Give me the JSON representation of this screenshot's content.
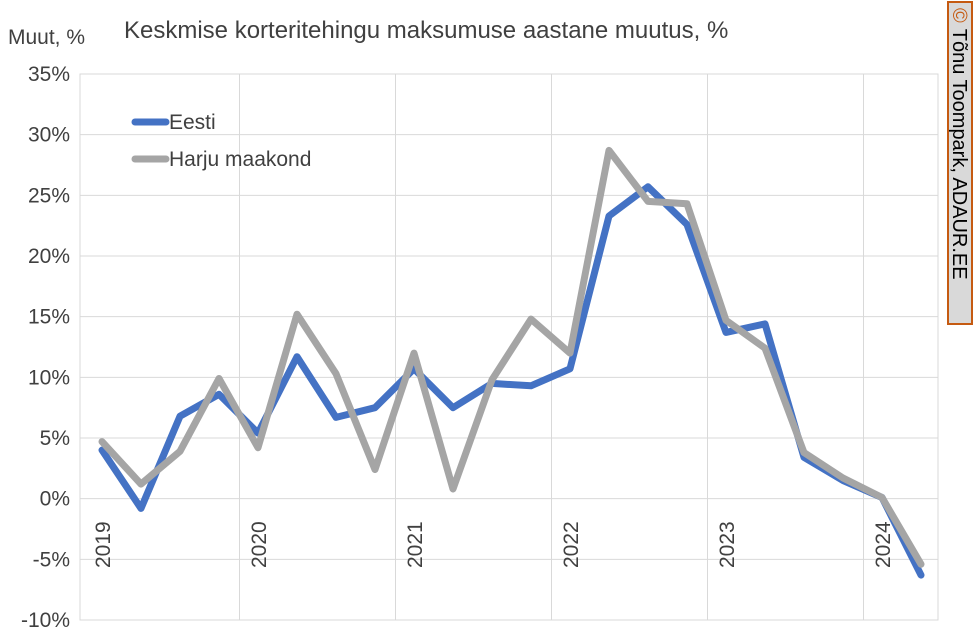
{
  "chart_data": {
    "type": "line",
    "title": "Keskmise korteritehingu maksumuse aastane muutus, %",
    "ylabel": "Muut, %",
    "ylim": [
      -10,
      35
    ],
    "ytick_step": 5,
    "yticks": [
      "35%",
      "30%",
      "25%",
      "20%",
      "15%",
      "10%",
      "5%",
      "0%",
      "-5%",
      "-10%"
    ],
    "year_labels": [
      "2019",
      "2020",
      "2021",
      "2022",
      "2023",
      "2024"
    ],
    "x": [
      "2019 Q1",
      "2019 Q2",
      "2019 Q3",
      "2019 Q4",
      "2020 Q1",
      "2020 Q2",
      "2020 Q3",
      "2020 Q4",
      "2021 Q1",
      "2021 Q2",
      "2021 Q3",
      "2021 Q4",
      "2022 Q1",
      "2022 Q2",
      "2022 Q3",
      "2022 Q4",
      "2023 Q1",
      "2023 Q2",
      "2023 Q3",
      "2023 Q4",
      "2024 Q1",
      "2024 Q2"
    ],
    "grid": true,
    "legend_position": "top-left",
    "series": [
      {
        "name": "Eesti",
        "color": "#4472C4",
        "values": [
          4.0,
          -0.8,
          6.8,
          8.6,
          5.4,
          11.7,
          6.7,
          7.5,
          10.7,
          7.5,
          9.5,
          9.3,
          10.7,
          23.3,
          25.7,
          22.6,
          13.7,
          14.4,
          3.4,
          1.5,
          0.1,
          -6.3
        ]
      },
      {
        "name": "Harju maakond",
        "color": "#A5A5A5",
        "values": [
          4.7,
          1.2,
          3.9,
          9.9,
          4.2,
          15.2,
          10.3,
          2.4,
          12.0,
          0.8,
          9.8,
          14.8,
          12.0,
          28.7,
          24.5,
          24.3,
          14.7,
          12.4,
          3.8,
          1.7,
          0.1,
          -5.4
        ]
      }
    ]
  },
  "credit": {
    "symbol": "©",
    "text": "Tõnu Toompark, ADAUR.EE",
    "border_color": "#C55A11",
    "background": "#D9D9D9"
  }
}
